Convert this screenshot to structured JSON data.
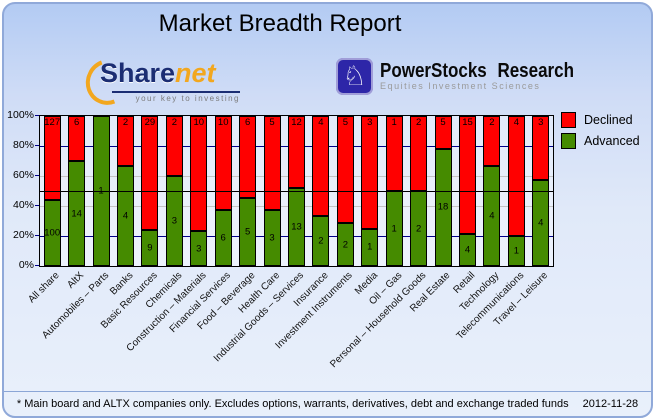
{
  "header": {
    "title": "Market Breadth Report"
  },
  "logos": {
    "sharenet": {
      "brand_primary": "Share",
      "brand_secondary": "net",
      "tagline": "your key to investing",
      "brand_color": "#1b2d73",
      "accent_color": "#f2a71f"
    },
    "powerstocks": {
      "name": "PowerStocks Research",
      "tagline": "Equities Investment Sciences",
      "icon": "knight-chess-icon",
      "icon_glyph": "♘",
      "icon_bg": "#2d26a8"
    }
  },
  "chart_data": {
    "type": "bar",
    "stacked": true,
    "unit": "percent-of-total",
    "categories": [
      "All share",
      "AltX",
      "Automobiles – Parts",
      "Banks",
      "Basic Resources",
      "Chemicals",
      "Construction – Materials",
      "Financial Services",
      "Food – Beverage",
      "Health Care",
      "Industrial Goods – Services",
      "Insurance",
      "Investment Instruments",
      "Media",
      "Oil – Gas",
      "Personal – Household Goods",
      "Real Estate",
      "Retail",
      "Technology",
      "Telecommunications",
      "Travel – Leisure"
    ],
    "series": [
      {
        "name": "Declined",
        "color": "#ff0000",
        "values": [
          127,
          6,
          0,
          2,
          29,
          2,
          10,
          10,
          6,
          5,
          12,
          4,
          5,
          3,
          1,
          2,
          5,
          15,
          2,
          4,
          3
        ]
      },
      {
        "name": "Advanced",
        "color": "#458b00",
        "values": [
          100,
          14,
          1,
          4,
          9,
          3,
          3,
          6,
          5,
          3,
          13,
          2,
          2,
          1,
          1,
          2,
          18,
          4,
          4,
          1,
          4
        ]
      }
    ],
    "y_axis": {
      "tick_labels": [
        "0%",
        "20%",
        "40%",
        "60%",
        "80%",
        "100%"
      ],
      "min": 0,
      "max": 100
    },
    "gridlines": [
      {
        "value": 20,
        "color": "#00008b"
      },
      {
        "value": 40,
        "color": "#c4c4c4"
      },
      {
        "value": 60,
        "color": "#c4c4c4"
      },
      {
        "value": 80,
        "color": "#00008b"
      }
    ],
    "reference_lines": [
      {
        "value": 50,
        "color": "#000000"
      }
    ],
    "legend": {
      "position": "top-right"
    }
  },
  "footer": {
    "note": "* Main board and ALTX companies only. Excludes options, warrants, derivatives, debt and exchange traded funds",
    "date": "2012-11-28"
  }
}
